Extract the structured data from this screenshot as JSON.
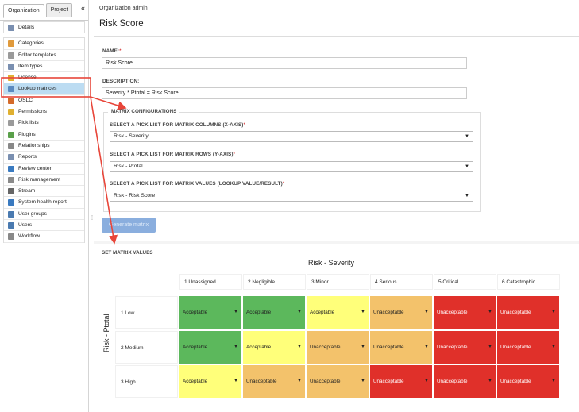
{
  "sidebar": {
    "tabs": [
      {
        "label": "Organization",
        "active": true
      },
      {
        "label": "Project",
        "active": false
      }
    ],
    "collapse_glyph": "«",
    "items": [
      {
        "label": "Details",
        "icon": "details-icon",
        "color": "#7a8fb0"
      },
      {
        "label": "Categories",
        "icon": "tag-icon",
        "color": "#e09a3c"
      },
      {
        "label": "Editor templates",
        "icon": "template-icon",
        "color": "#9a9a9a"
      },
      {
        "label": "Item types",
        "icon": "item-types-icon",
        "color": "#7a8fb0"
      },
      {
        "label": "License",
        "icon": "key-icon",
        "color": "#e0b030"
      },
      {
        "label": "Lookup matrices",
        "icon": "matrix-icon",
        "color": "#5a8ac0",
        "selected": true
      },
      {
        "label": "OSLC",
        "icon": "oslc-icon",
        "color": "#d46a2a"
      },
      {
        "label": "Permissions",
        "icon": "permissions-icon",
        "color": "#e0b030"
      },
      {
        "label": "Pick lists",
        "icon": "list-icon",
        "color": "#9a9a9a"
      },
      {
        "label": "Plugins",
        "icon": "plugin-icon",
        "color": "#5aa04a"
      },
      {
        "label": "Relationships",
        "icon": "link-icon",
        "color": "#888888"
      },
      {
        "label": "Reports",
        "icon": "report-icon",
        "color": "#7a8fb0"
      },
      {
        "label": "Review center",
        "icon": "review-icon",
        "color": "#3a7ac0"
      },
      {
        "label": "Risk management",
        "icon": "risk-icon",
        "color": "#8a8a8a"
      },
      {
        "label": "Stream",
        "icon": "stream-icon",
        "color": "#666666"
      },
      {
        "label": "System health report",
        "icon": "health-icon",
        "color": "#3a7ac0"
      },
      {
        "label": "User groups",
        "icon": "user-groups-icon",
        "color": "#4a7ab0"
      },
      {
        "label": "Users",
        "icon": "user-icon",
        "color": "#4a7ab0"
      },
      {
        "label": "Workflow",
        "icon": "workflow-icon",
        "color": "#888888"
      }
    ]
  },
  "header": {
    "breadcrumb": "Organization admin",
    "title": "Risk Score"
  },
  "form": {
    "name_label": "NAME:",
    "name_value": "Risk Score",
    "description_label": "DESCRIPTION:",
    "description_value": "Severity * Ptotal = Risk Score",
    "required_mark": "*",
    "config_legend": "MATRIX CONFIGURATIONS",
    "columns_label": "SELECT A PICK LIST FOR MATRIX COLUMNS (X-AXIS)",
    "columns_value": "Risk - Severity",
    "rows_label": "SELECT A PICK LIST FOR MATRIX ROWS (Y-AXIS)",
    "rows_value": "Risk - Ptotal",
    "values_label": "SELECT A PICK LIST FOR MATRIX VALUES (LOOKUP VALUE/RESULT)",
    "values_value": "Risk - Risk Score",
    "generate_button": "Generate matrix",
    "caret": "▼"
  },
  "matrix": {
    "section_title": "SET MATRIX VALUES",
    "x_axis_label": "Risk - Severity",
    "y_axis_label": "Risk - Ptotal",
    "columns": [
      "1  Unassigned",
      "2  Negligible",
      "3  Minor",
      "4  Serious",
      "5  Critical",
      "6  Catastrophic"
    ],
    "rows": [
      {
        "label": "1  Low",
        "cells": [
          "Acceptable",
          "Acceptable",
          "Acceptable",
          "Unacceptable",
          "Unacceptable",
          "Unacceptable"
        ]
      },
      {
        "label": "2  Medium",
        "cells": [
          "Acceptable",
          "Acceptable",
          "Unacceptable",
          "Unacceptable",
          "Unacceptable",
          "Unacceptable"
        ]
      },
      {
        "label": "3  High",
        "cells": [
          "Acceptable",
          "Unacceptable",
          "Unacceptable",
          "Unacceptable",
          "Unacceptable",
          "Unacceptable"
        ]
      }
    ],
    "cell_colors": [
      [
        "#5cb85c",
        "#5cb85c",
        "#ffff7a",
        "#f3c26b",
        "#e0302a",
        "#e0302a"
      ],
      [
        "#5cb85c",
        "#ffff7a",
        "#f3c26b",
        "#f3c26b",
        "#e0302a",
        "#e0302a"
      ],
      [
        "#ffff7a",
        "#f3c26b",
        "#f3c26b",
        "#e0302a",
        "#e0302a",
        "#e0302a"
      ]
    ]
  },
  "colors": {
    "selection_highlight": "#bcdcf2",
    "annotation_red": "#e8463a",
    "button_disabled": "#8aaede"
  }
}
